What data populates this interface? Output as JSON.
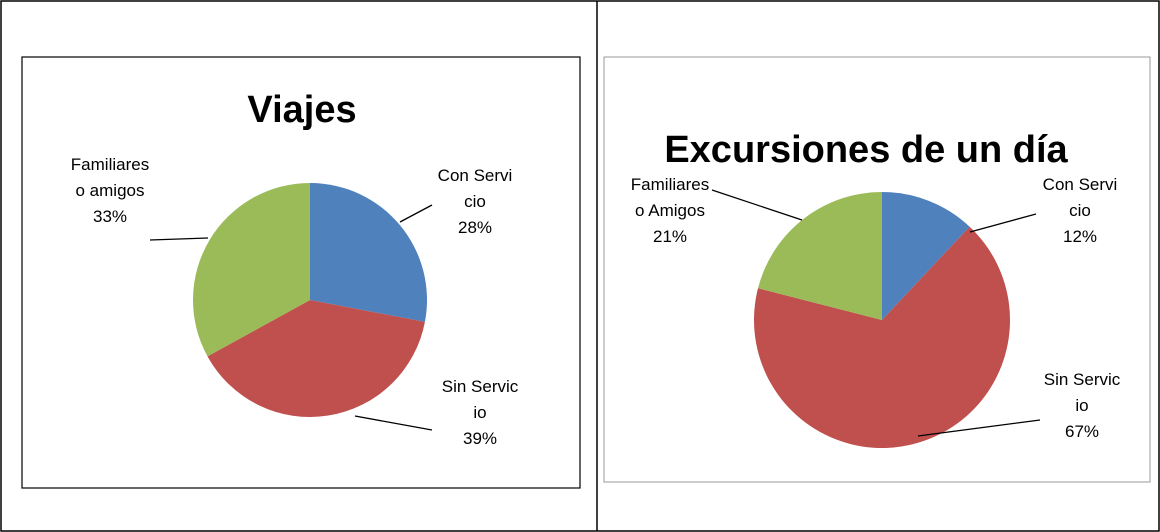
{
  "chart_data": [
    {
      "type": "pie",
      "title": "Viajes",
      "categories": [
        "Con Servicio",
        "Sin Servicio",
        "Familiares o amigos"
      ],
      "values": [
        28,
        39,
        33
      ],
      "value_labels": [
        "28%",
        "39%",
        "33%"
      ],
      "colors": [
        "#4f81bd",
        "#c0504d",
        "#9bbb59"
      ]
    },
    {
      "type": "pie",
      "title": "Excursiones de un día",
      "categories": [
        "Con Servicio",
        "Sin Servicio",
        "Familiares o Amigos"
      ],
      "values": [
        12,
        67,
        21
      ],
      "value_labels": [
        "12%",
        "67%",
        "21%"
      ],
      "colors": [
        "#4f81bd",
        "#c0504d",
        "#9bbb59"
      ]
    }
  ]
}
